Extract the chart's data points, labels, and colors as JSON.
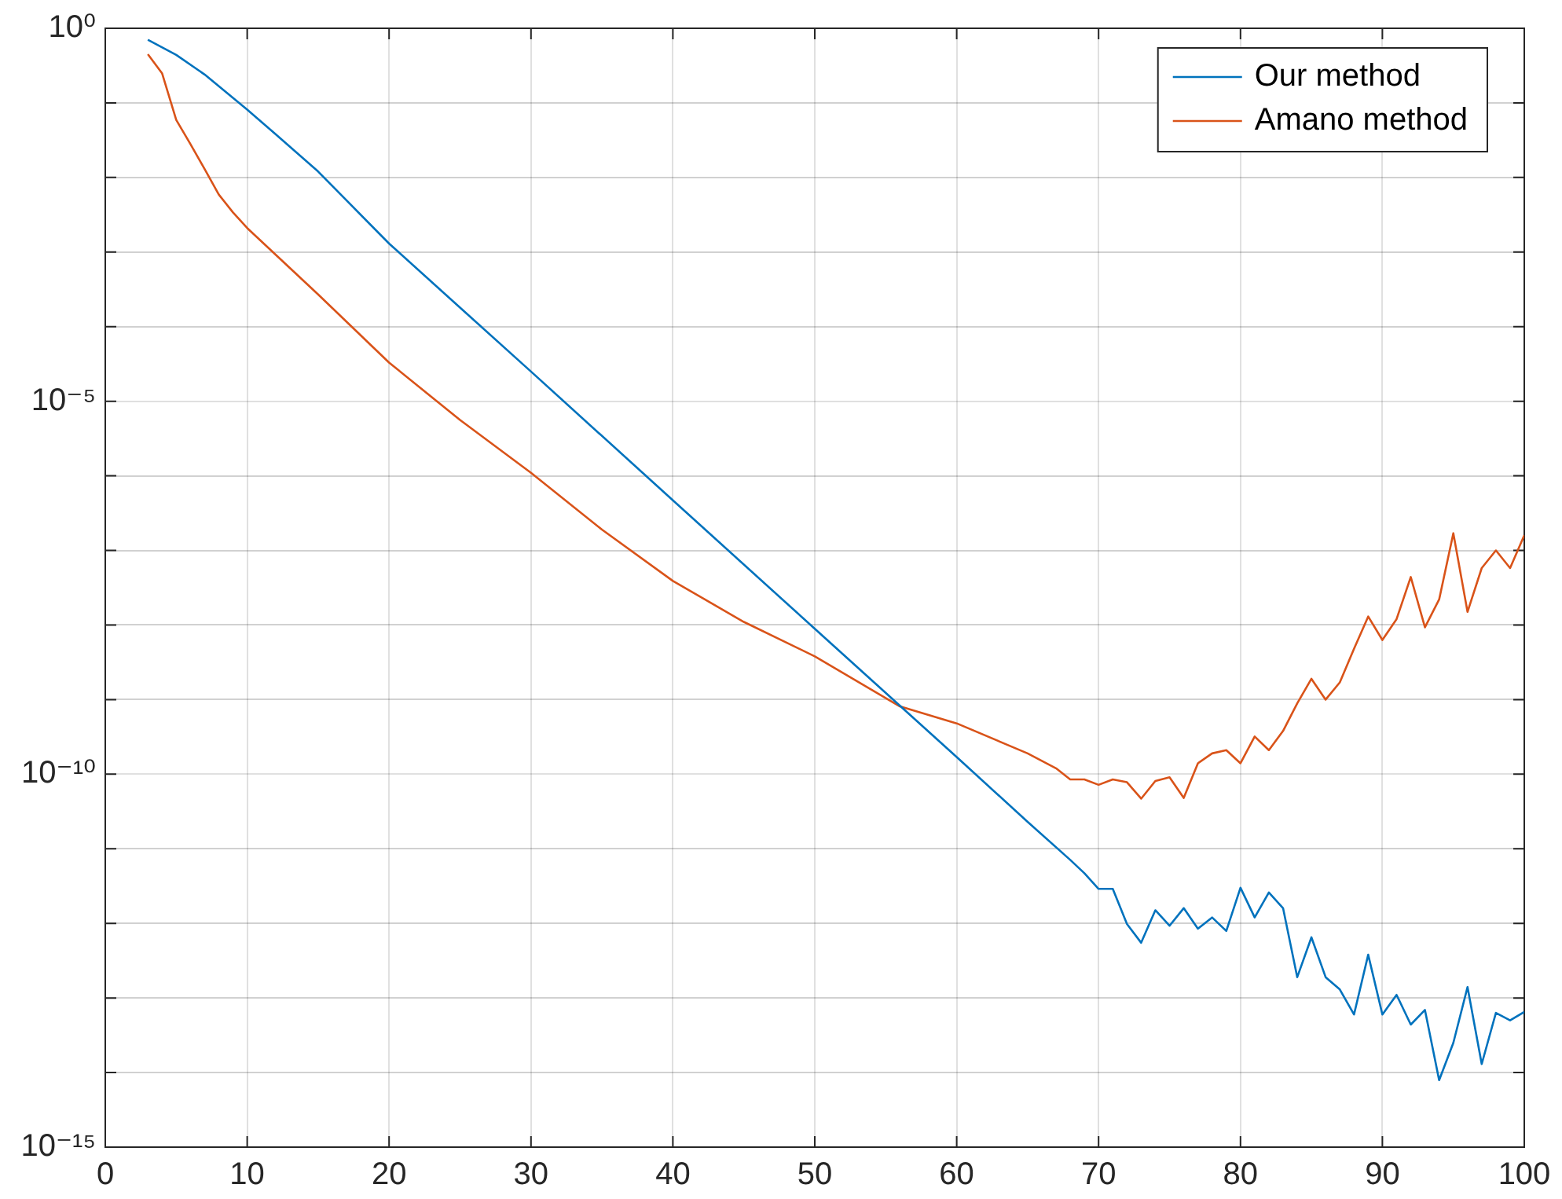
{
  "chart_data": {
    "type": "line",
    "log": "y",
    "grid": true,
    "legend": "top right",
    "marker": "none",
    "line_style": "solid",
    "xlim": [
      0,
      100
    ],
    "xticks": [
      0,
      10,
      20,
      30,
      40,
      50,
      60,
      70,
      80,
      90,
      100
    ],
    "ylim": [
      1e-15,
      1
    ],
    "yticks": [
      {
        "value": 1e-15,
        "label": "10⁻¹⁵"
      },
      {
        "value": 1e-14,
        "label": null
      },
      {
        "value": 1e-13,
        "label": null
      },
      {
        "value": 1e-12,
        "label": null
      },
      {
        "value": 1e-11,
        "label": null
      },
      {
        "value": 1e-10,
        "label": "10⁻¹⁰"
      },
      {
        "value": 1e-09,
        "label": null
      },
      {
        "value": 1e-08,
        "label": null
      },
      {
        "value": 1e-07,
        "label": null
      },
      {
        "value": 1e-06,
        "label": null
      },
      {
        "value": 1e-05,
        "label": "10⁻⁵"
      },
      {
        "value": 0.0001,
        "label": null
      },
      {
        "value": 0.001,
        "label": null
      },
      {
        "value": 0.01,
        "label": null
      },
      {
        "value": 0.1,
        "label": null
      },
      {
        "value": 1,
        "label": "10⁰"
      }
    ],
    "series": [
      {
        "name": "Our method",
        "color": "#0072bd",
        "x": [
          3,
          5,
          7,
          10,
          12,
          15,
          20,
          25,
          30,
          40,
          50,
          60,
          65,
          68,
          69,
          70,
          71,
          72,
          73,
          74,
          75,
          76,
          77,
          78,
          79,
          80,
          81,
          82,
          83,
          84,
          85,
          86,
          87,
          88,
          89,
          90,
          91,
          92,
          93,
          94,
          95,
          96,
          97,
          98,
          99,
          100
        ],
        "values": [
          0.7,
          0.44,
          0.24,
          0.081,
          0.038,
          0.012,
          0.0013,
          0.00018,
          2.5e-05,
          4.7e-07,
          8.9e-09,
          1.7e-10,
          2.3e-11,
          7.1e-12,
          4.7e-12,
          2.9e-12,
          2.9e-12,
          9.8e-13,
          5.5e-13,
          1.5e-12,
          9.3e-13,
          1.6e-12,
          8.5e-13,
          1.2e-12,
          7.9e-13,
          3e-12,
          1.2e-12,
          2.6e-12,
          1.6e-12,
          1.9e-13,
          6.5e-13,
          1.9e-13,
          1.3e-13,
          6e-14,
          3.8e-13,
          6e-14,
          1.1e-13,
          4.4e-14,
          6.9e-14,
          7.9e-15,
          2.5e-14,
          1.4e-13,
          1.3e-14,
          6.3e-14,
          5e-14,
          6.5e-14
        ]
      },
      {
        "name": "Amano method",
        "color": "#d95319",
        "x": [
          3,
          4,
          5,
          6,
          7,
          8,
          9,
          10,
          15,
          20,
          25,
          30,
          35,
          40,
          45,
          50,
          56,
          60,
          65,
          67,
          68,
          69,
          70,
          71,
          72,
          73,
          74,
          75,
          76,
          77,
          78,
          79,
          80,
          81,
          82,
          83,
          84,
          85,
          86,
          87,
          88,
          89,
          90,
          91,
          92,
          93,
          94,
          95,
          96,
          97,
          98,
          99,
          100
        ],
        "values": [
          0.45,
          0.25,
          0.059,
          0.028,
          0.013,
          0.0059,
          0.0034,
          0.0021,
          0.00027,
          3.3e-05,
          5.6e-06,
          1.1e-06,
          1.9e-07,
          3.9e-08,
          1.1e-08,
          3.8e-09,
          8.1e-10,
          4.8e-10,
          1.9e-10,
          1.2e-10,
          8.5e-11,
          8.5e-11,
          7.2e-11,
          8.5e-11,
          7.8e-11,
          4.7e-11,
          8.1e-11,
          9.1e-11,
          4.8e-11,
          1.4e-10,
          1.9e-10,
          2.1e-10,
          1.4e-10,
          3.2e-10,
          2.1e-10,
          3.8e-10,
          8.9e-10,
          1.9e-09,
          1e-09,
          1.7e-09,
          4.8e-09,
          1.3e-08,
          6.3e-09,
          1.2e-08,
          4.4e-08,
          9.3e-09,
          2.2e-08,
          1.7e-07,
          1.5e-08,
          5.8e-08,
          1e-07,
          5.8e-08,
          1.6e-07
        ]
      }
    ]
  }
}
